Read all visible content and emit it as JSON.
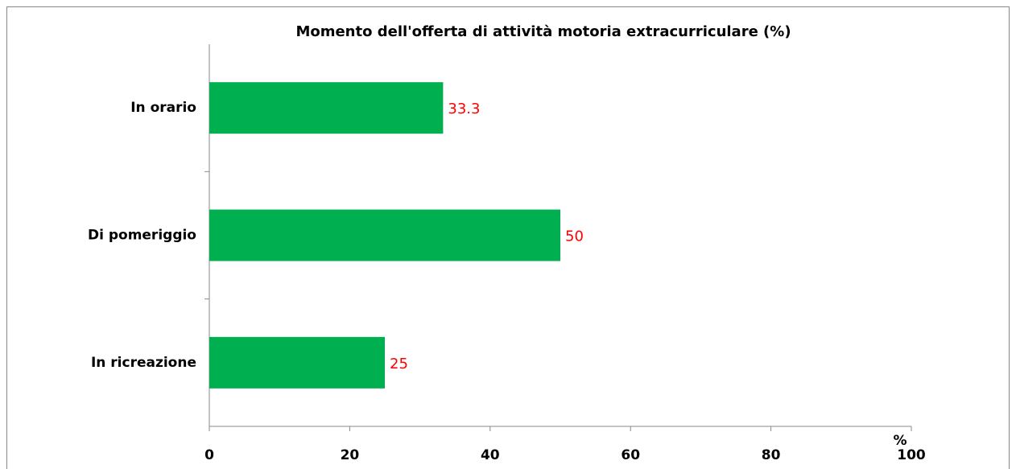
{
  "chart_data": {
    "type": "hbar",
    "title": "Momento dell'offerta di attività motoria extracurriculare (%)",
    "categories": [
      "In orario",
      "Di pomeriggio",
      "In ricreazione"
    ],
    "values": [
      33.3,
      50,
      25
    ],
    "color": "#00b050",
    "label_color": "#ff0000",
    "xlabel": "%",
    "xlim": [
      0,
      100
    ],
    "xticks": [
      0,
      20,
      40,
      60,
      80,
      100
    ],
    "grid": false
  }
}
